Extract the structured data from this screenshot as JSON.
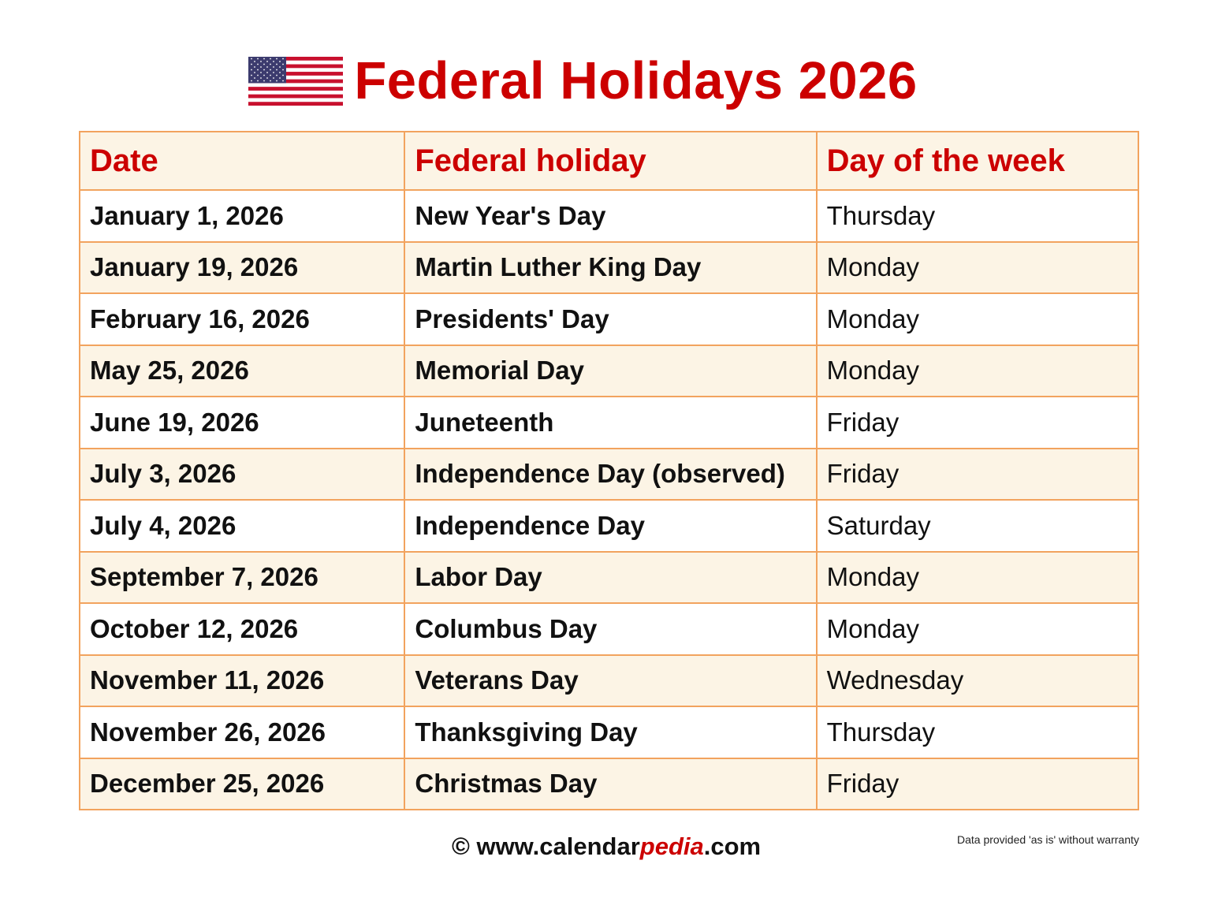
{
  "title": "Federal Holidays 2026",
  "flag_icon": "us-flag-icon",
  "colors": {
    "accent": "#cc0000",
    "border": "#f2a35e",
    "stripe": "#fcf4e5"
  },
  "table": {
    "headers": [
      "Date",
      "Federal holiday",
      "Day of the week"
    ],
    "rows": [
      [
        "January 1, 2026",
        "New Year's Day",
        "Thursday"
      ],
      [
        "January 19, 2026",
        "Martin Luther King Day",
        "Monday"
      ],
      [
        "February 16, 2026",
        "Presidents' Day",
        "Monday"
      ],
      [
        "May 25, 2026",
        "Memorial Day",
        "Monday"
      ],
      [
        "June 19, 2026",
        "Juneteenth",
        "Friday"
      ],
      [
        "July 3, 2026",
        "Independence Day (observed)",
        "Friday"
      ],
      [
        "July 4, 2026",
        "Independence Day",
        "Saturday"
      ],
      [
        "September 7, 2026",
        "Labor Day",
        "Monday"
      ],
      [
        "October 12, 2026",
        "Columbus Day",
        "Monday"
      ],
      [
        "November 11, 2026",
        "Veterans Day",
        "Wednesday"
      ],
      [
        "November 26, 2026",
        "Thanksgiving Day",
        "Thursday"
      ],
      [
        "December 25, 2026",
        "Christmas Day",
        "Friday"
      ]
    ]
  },
  "footer": {
    "prefix": "© www.calendar",
    "brand": "pedia",
    "suffix": ".com",
    "disclaimer": "Data provided 'as is' without warranty"
  }
}
